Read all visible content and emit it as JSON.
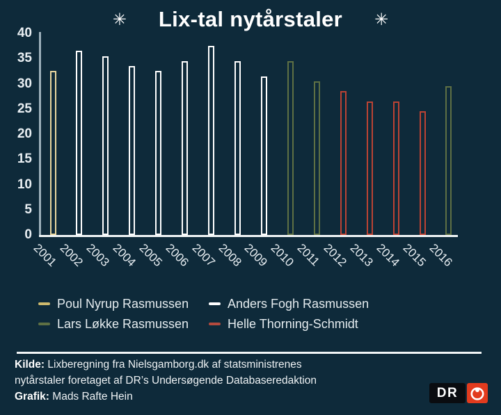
{
  "title": {
    "text": "Lix-tal nytårstaler",
    "decoration": "✳"
  },
  "colors": {
    "background": "#0e2a3a",
    "axis_y": "#9db0bb",
    "axis_x": "#f2f6f7",
    "text": "#e8eef2",
    "logo_red": "#e23b1e",
    "logo_black": "#0a0c10"
  },
  "chart_data": {
    "type": "bar",
    "title": "Lix-tal nytårstaler",
    "xlabel": "",
    "ylabel": "",
    "ylim": [
      0,
      40
    ],
    "yticks": [
      0,
      5,
      10,
      15,
      20,
      25,
      30,
      35,
      40
    ],
    "grid": false,
    "bar_style": "hollow-outline",
    "categories": [
      "2001",
      "2002",
      "2003",
      "2004",
      "2005",
      "2006",
      "2007",
      "2008",
      "2009",
      "2010",
      "2011",
      "2012",
      "2013",
      "2014",
      "2015",
      "2016"
    ],
    "values": [
      32.5,
      36.5,
      35.5,
      33.5,
      32.5,
      34.5,
      37.5,
      34.5,
      31.5,
      34.5,
      30.5,
      28.5,
      26.5,
      26.5,
      24.5,
      29.5
    ],
    "bar_speakers": [
      "Poul Nyrup Rasmussen",
      "Anders Fogh Rasmussen",
      "Anders Fogh Rasmussen",
      "Anders Fogh Rasmussen",
      "Anders Fogh Rasmussen",
      "Anders Fogh Rasmussen",
      "Anders Fogh Rasmussen",
      "Anders Fogh Rasmussen",
      "Anders Fogh Rasmussen",
      "Lars Løkke Rasmussen",
      "Lars Løkke Rasmussen",
      "Helle Thorning-Schmidt",
      "Helle Thorning-Schmidt",
      "Helle Thorning-Schmidt",
      "Helle Thorning-Schmidt",
      "Lars Løkke Rasmussen"
    ],
    "speaker_colors": {
      "Poul Nyrup Rasmussen": "#e9d79f",
      "Anders Fogh Rasmussen": "#ffffff",
      "Lars Løkke Rasmussen": "#5e7044",
      "Helle Thorning-Schmidt": "#bc4334"
    },
    "legend_position": "bottom"
  },
  "legend": {
    "items": [
      {
        "label": "Poul Nyrup Rasmussen",
        "color": "#cdb96d"
      },
      {
        "label": "Anders Fogh Rasmussen",
        "color": "#ffffff"
      },
      {
        "label": "Lars Løkke Rasmussen",
        "color": "#5e7044"
      },
      {
        "label": "Helle Thorning-Schmidt",
        "color": "#b44a3e"
      }
    ]
  },
  "footer": {
    "source_label": "Kilde:",
    "source_line1": "Lixberegning fra Nielsgamborg.dk af statsministrenes",
    "source_line2": "nytårstaler foretaget af DR’s Undersøgende Databaseredaktion",
    "credit_label": "Grafik:",
    "credit": "Mads Rafte Hein"
  },
  "logo": {
    "channel": "DR"
  }
}
